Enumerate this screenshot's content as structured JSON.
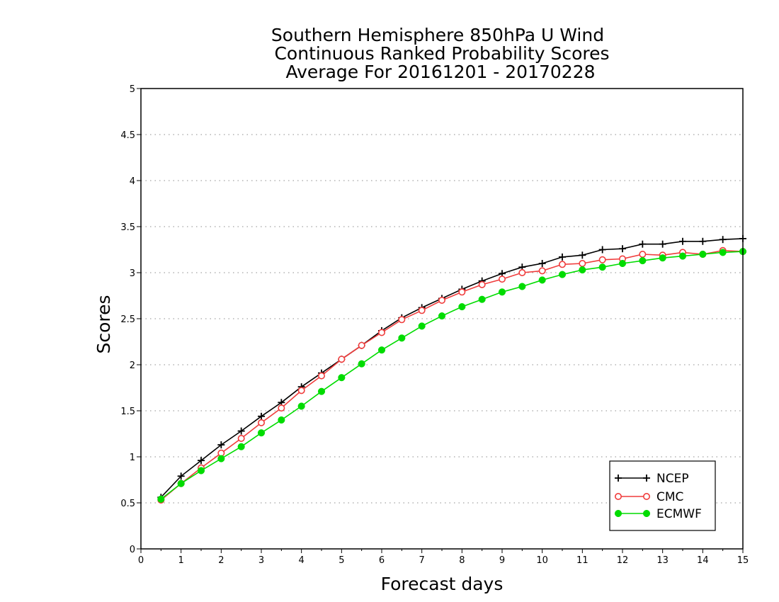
{
  "chart_data": {
    "type": "line",
    "title": [
      "Southern Hemisphere 850hPa U Wind",
      "Continuous Ranked Probability Scores",
      "Average For 20161201 - 20170228"
    ],
    "xlabel": "Forecast days",
    "ylabel": "Scores",
    "xlim": [
      0,
      15
    ],
    "ylim": [
      0,
      5
    ],
    "xticks": [
      "0",
      "1",
      "2",
      "3",
      "4",
      "5",
      "6",
      "7",
      "8",
      "9",
      "10",
      "11",
      "12",
      "13",
      "14",
      "15"
    ],
    "yticks": [
      "0",
      "0.5",
      "1",
      "1.5",
      "2",
      "2.5",
      "3",
      "3.5",
      "4",
      "4.5",
      "5"
    ],
    "grid": "horizontal dotted",
    "legend_position": "bottom-right",
    "x": [
      0.5,
      1,
      1.5,
      2,
      2.5,
      3,
      3.5,
      4,
      4.5,
      5,
      5.5,
      6,
      6.5,
      7,
      7.5,
      8,
      8.5,
      9,
      9.5,
      10,
      10.5,
      11,
      11.5,
      12,
      12.5,
      13,
      13.5,
      14,
      14.5,
      15
    ],
    "series": [
      {
        "name": "NCEP",
        "color": "#000000",
        "marker": "plus",
        "values": [
          0.56,
          0.79,
          0.96,
          1.13,
          1.28,
          1.44,
          1.59,
          1.76,
          1.91,
          2.06,
          2.21,
          2.37,
          2.51,
          2.62,
          2.72,
          2.82,
          2.91,
          2.99,
          3.06,
          3.1,
          3.17,
          3.19,
          3.25,
          3.26,
          3.31,
          3.31,
          3.34,
          3.34,
          3.36,
          3.37
        ]
      },
      {
        "name": "CMC",
        "color": "#f03c3c",
        "marker": "open-circle",
        "values": [
          0.53,
          0.71,
          0.88,
          1.04,
          1.2,
          1.37,
          1.53,
          1.72,
          1.88,
          2.06,
          2.21,
          2.35,
          2.49,
          2.59,
          2.7,
          2.79,
          2.87,
          2.93,
          3.0,
          3.02,
          3.09,
          3.1,
          3.14,
          3.15,
          3.2,
          3.19,
          3.22,
          3.2,
          3.24,
          3.23
        ]
      },
      {
        "name": "ECMWF",
        "color": "#00dc00",
        "marker": "filled-circle",
        "values": [
          0.54,
          0.71,
          0.85,
          0.98,
          1.11,
          1.26,
          1.4,
          1.55,
          1.71,
          1.86,
          2.01,
          2.16,
          2.29,
          2.42,
          2.53,
          2.63,
          2.71,
          2.79,
          2.85,
          2.92,
          2.98,
          3.03,
          3.06,
          3.1,
          3.13,
          3.16,
          3.18,
          3.2,
          3.22,
          3.23
        ]
      }
    ]
  }
}
